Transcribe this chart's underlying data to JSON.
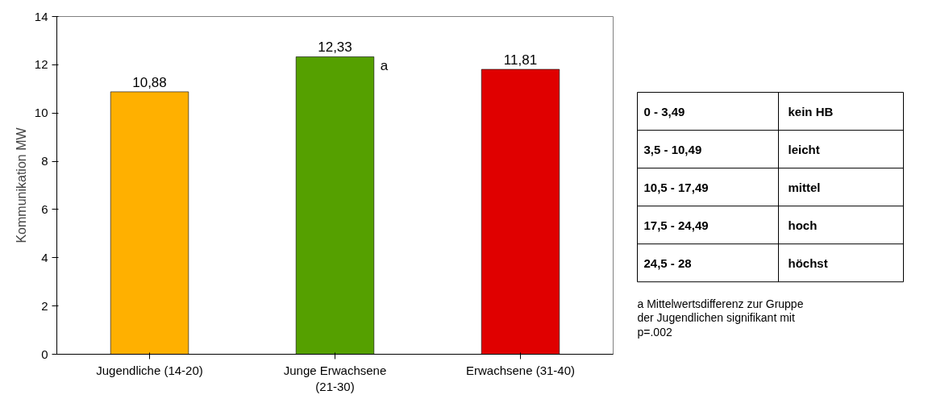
{
  "chart_data": {
    "type": "bar",
    "ylabel": "Kommunikation MW",
    "categories": [
      "Jugendliche (14-20)",
      "Junge Erwachsene (21-30)",
      "Erwachsene (31-40)"
    ],
    "values": [
      10.88,
      12.33,
      11.81
    ],
    "colors": [
      "#ffb000",
      "#55a000",
      "#e00000"
    ],
    "ylim": [
      0,
      14
    ],
    "yticks": [
      0,
      2,
      4,
      6,
      8,
      10,
      12,
      14
    ],
    "grid": false,
    "value_labels": [
      "10,88",
      "12,33",
      "11,81"
    ],
    "annotations": [
      "a",
      "0 - 3,49",
      "kein HB",
      "3,5 - 10,49",
      "leicht",
      "10,5 - 17,49",
      "mittel",
      "17,5 - 24,49",
      "hoch",
      "24,5 - 28",
      "höchst",
      "a Mittelwertsdifferenz zur Gruppe der Jugendlichen signifikant mit p=.002"
    ]
  }
}
